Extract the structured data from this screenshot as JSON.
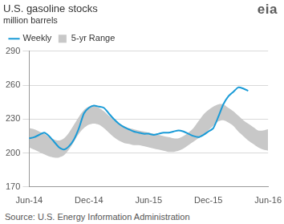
{
  "chart_data": {
    "type": "line",
    "title": "U.S. gasoline stocks",
    "subtitle": "million barrels",
    "logo": "eia",
    "source": "Source: U.S. Energy Information Administration",
    "categories": [
      "Jun-14",
      null,
      null,
      null,
      null,
      null,
      null,
      null,
      null,
      null,
      null,
      null,
      "Dec-14",
      null,
      null,
      null,
      null,
      null,
      null,
      null,
      null,
      null,
      null,
      null,
      "Jun-15",
      null,
      null,
      null,
      null,
      null,
      null,
      null,
      null,
      null,
      null,
      null,
      "Dec-15",
      null,
      null,
      null,
      null,
      null,
      null,
      null,
      null,
      null,
      null,
      null,
      "Jun-16"
    ],
    "series": [
      {
        "name": "5-yr Range",
        "type": "range",
        "color": "#c8c8c8",
        "low": [
          205,
          203,
          201,
          199,
          197,
          196,
          196,
          198,
          203,
          210,
          217,
          222,
          225,
          226,
          225,
          222,
          218,
          214,
          211,
          209,
          208,
          207,
          207,
          206,
          205,
          204,
          203,
          202,
          201,
          201,
          202,
          204,
          207,
          210,
          213,
          216,
          220,
          224,
          228,
          229,
          227,
          224,
          219,
          215,
          211,
          208,
          205,
          203,
          202
        ],
        "high": [
          222,
          221,
          219,
          217,
          214,
          212,
          211,
          213,
          218,
          225,
          232,
          238,
          241,
          242,
          240,
          237,
          233,
          229,
          226,
          224,
          222,
          221,
          220,
          219,
          218,
          217,
          216,
          215,
          214,
          213,
          213,
          215,
          218,
          222,
          228,
          234,
          238,
          241,
          243,
          243,
          240,
          237,
          233,
          229,
          226,
          223,
          220,
          220,
          221
        ]
      },
      {
        "name": "Weekly",
        "type": "line",
        "color": "#1a9bd7",
        "values": [
          213,
          214,
          216,
          218,
          215,
          210,
          205,
          203,
          206,
          212,
          222,
          235,
          240,
          242,
          241,
          240,
          235,
          230,
          226,
          223,
          221,
          219,
          218,
          217,
          217,
          216,
          217,
          218,
          218,
          219,
          220,
          219,
          217,
          215,
          214,
          216,
          219,
          222,
          232,
          243,
          250,
          254,
          258,
          257,
          255,
          null,
          null,
          null,
          null
        ]
      }
    ],
    "ylim": [
      170,
      290
    ],
    "yticks": [
      170,
      200,
      230,
      260,
      290
    ],
    "grid": true,
    "legend": "top-left"
  }
}
